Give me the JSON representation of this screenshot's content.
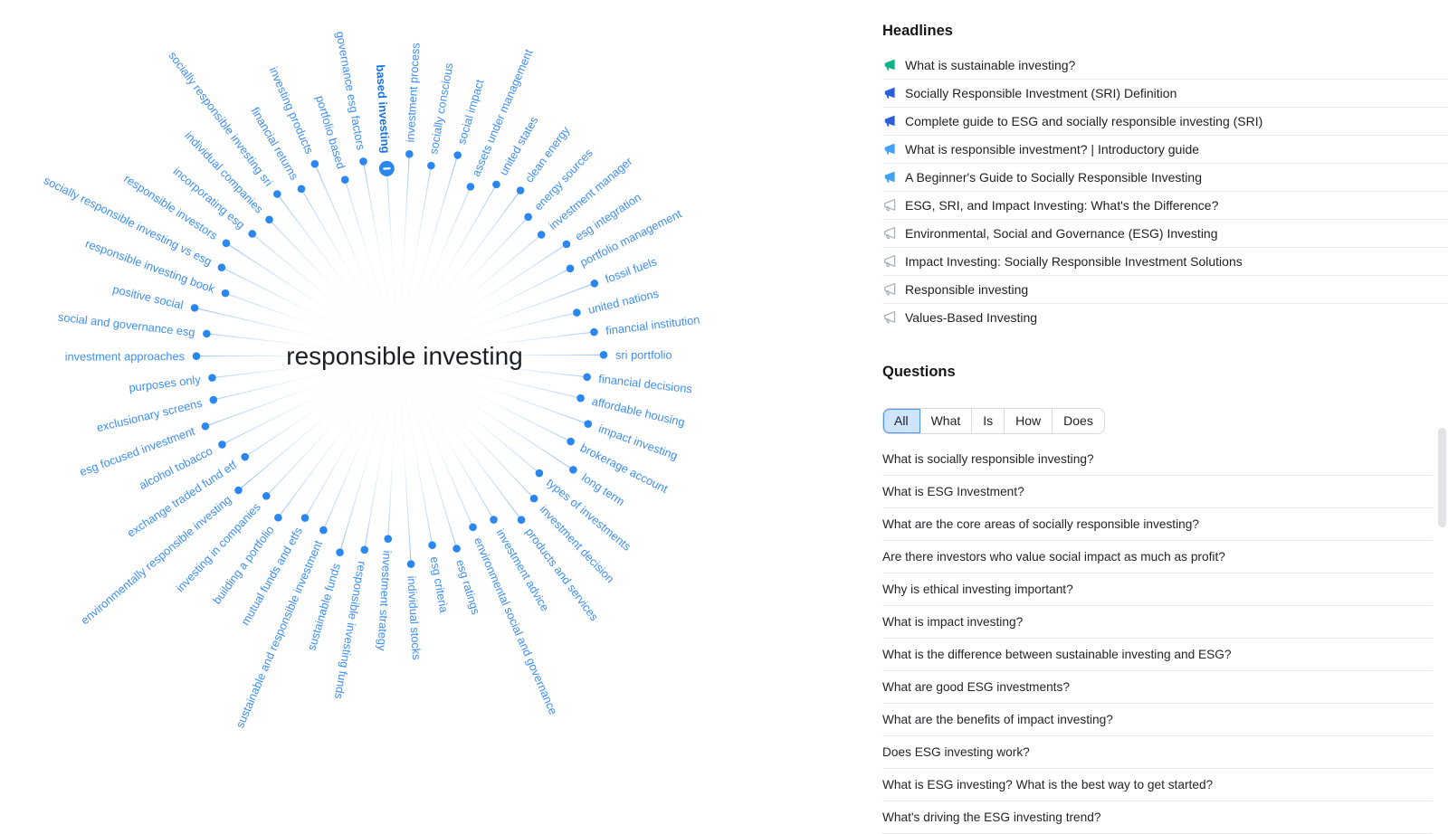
{
  "map": {
    "center_label": "responsible investing",
    "selected_label": "based investing",
    "colors": {
      "label": "#3E8EF4",
      "selected_label": "#1A73E8",
      "line": "#79B1F5",
      "dot": "#2B87F0",
      "center_text": "#1D2127"
    },
    "nodes": [
      "based investing",
      "investment process",
      "socially conscious",
      "social impact",
      "assets under management",
      "united states",
      "clean energy",
      "energy sources",
      "investment manager",
      "esg integration",
      "portfolio management",
      "fossil fuels",
      "united nations",
      "financial institution",
      "sri portfolio",
      "financial decisions",
      "affordable housing",
      "impact investing",
      "brokerage account",
      "long term",
      "types of investments",
      "investment decision",
      "products and services",
      "investment advice",
      "environmental social and governance",
      "esg ratings",
      "esg criteria",
      "individual stocks",
      "investment strategy",
      "responsible investing funds",
      "sustainable funds",
      "sustainable and responsible investment",
      "mutual funds and etfs",
      "building a portfolio",
      "investing in companies",
      "environmentally responsible investing",
      "exchange traded fund etf",
      "alcohol tobacco",
      "esg focused investment",
      "exclusionary screens",
      "purposes only",
      "investment approaches",
      "social and governance esg",
      "positive social",
      "responsible investing book",
      "socially responsible investing vs esg",
      "responsible investors",
      "incorporating esg",
      "individual companies",
      "socially responsible investing sri",
      "financial returns",
      "investing products",
      "portfolio based",
      "governance esg factors"
    ]
  },
  "headlines": {
    "title": "Headlines",
    "items": [
      {
        "label": "What is sustainable investing?",
        "icon_style": "filled",
        "icon_color": "#12B184"
      },
      {
        "label": "Socially Responsible Investment (SRI) Definition",
        "icon_style": "filled",
        "icon_color": "#2B5FD9"
      },
      {
        "label": "Complete guide to ESG and socially responsible investing (SRI)",
        "icon_style": "filled",
        "icon_color": "#2B5FD9"
      },
      {
        "label": "What is responsible investment? | Introductory guide",
        "icon_style": "filled",
        "icon_color": "#3FA2F5"
      },
      {
        "label": "A Beginner's Guide to Socially Responsible Investing",
        "icon_style": "filled",
        "icon_color": "#3FA2F5"
      },
      {
        "label": "ESG, SRI, and Impact Investing: What's the Difference?",
        "icon_style": "outline",
        "icon_color": "#A8AEB8"
      },
      {
        "label": "Environmental, Social and Governance (ESG) Investing",
        "icon_style": "outline",
        "icon_color": "#A8AEB8"
      },
      {
        "label": "Impact Investing: Socially Responsible Investment Solutions",
        "icon_style": "outline",
        "icon_color": "#A8AEB8"
      },
      {
        "label": "Responsible investing",
        "icon_style": "outline",
        "icon_color": "#A8AEB8"
      },
      {
        "label": "Values-Based Investing",
        "icon_style": "outline",
        "icon_color": "#A8AEB8"
      }
    ]
  },
  "questions": {
    "title": "Questions",
    "filters": [
      "All",
      "What",
      "Is",
      "How",
      "Does"
    ],
    "active_filter": "All",
    "items": [
      "What is socially responsible investing?",
      "What is ESG Investment?",
      "What are the core areas of socially responsible investing?",
      "Are there investors who value social impact as much as profit?",
      "Why is ethical investing important?",
      "What is impact investing?",
      "What is the difference between sustainable investing and ESG?",
      "What are good ESG investments?",
      "What are the benefits of impact investing?",
      "Does ESG investing work?",
      "What is ESG investing? What is the best way to get started?",
      "What's driving the ESG investing trend?"
    ]
  }
}
